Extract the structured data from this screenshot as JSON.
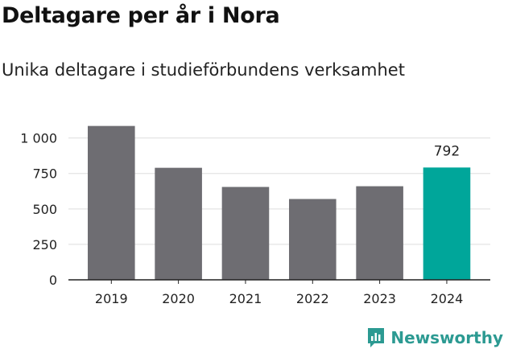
{
  "title": "Deltagare per år i Nora",
  "subtitle": "Unika deltagare i studieförbundens verksamhet",
  "brand": {
    "name": "Newsworthy",
    "icon": "newsworthy-logo-icon",
    "color": "#2c9a92"
  },
  "chart_data": {
    "type": "bar",
    "categories": [
      "2019",
      "2020",
      "2021",
      "2022",
      "2023",
      "2024"
    ],
    "values": [
      1085,
      790,
      655,
      570,
      660,
      792
    ],
    "highlight_index": 5,
    "data_labels": [
      {
        "index": 5,
        "text": "792"
      }
    ],
    "colors": {
      "default": "#6e6d72",
      "highlight": "#00a69a",
      "grid": "#dddddd",
      "axis": "#222222"
    },
    "ylim": [
      0,
      1100
    ],
    "yticks": [
      0,
      250,
      500,
      750,
      1000
    ],
    "ytick_labels": [
      "0",
      "250",
      "500",
      "750",
      "1 000"
    ],
    "grid": true,
    "xlabel": "",
    "ylabel": ""
  }
}
